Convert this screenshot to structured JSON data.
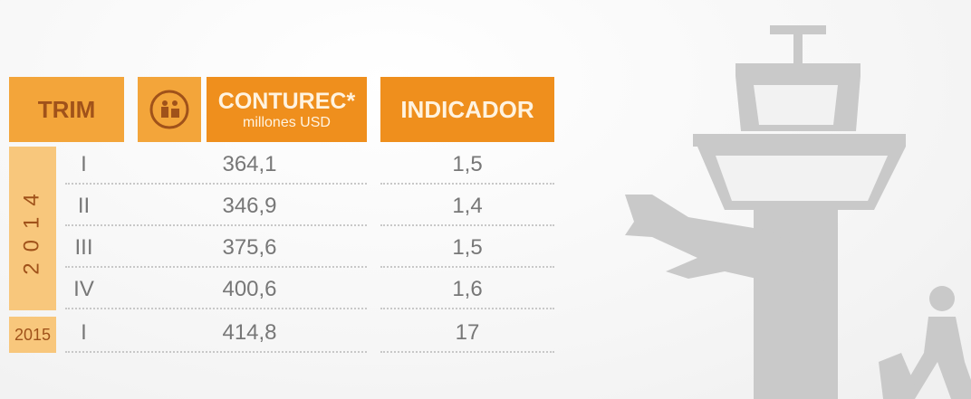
{
  "header": {
    "trim": "TRIM",
    "conturec": "CONTUREC*",
    "unit": "millones USD",
    "indicador": "INDICADOR"
  },
  "years": [
    "2014",
    "2015"
  ],
  "table": {
    "rows": [
      {
        "quarter": "I",
        "value": "364,1",
        "indicator": "1,5"
      },
      {
        "quarter": "II",
        "value": "346,9",
        "indicator": "1,4"
      },
      {
        "quarter": "III",
        "value": "375,6",
        "indicator": "1,5"
      },
      {
        "quarter": "IV",
        "value": "400,6",
        "indicator": "1,6"
      },
      {
        "quarter": "I",
        "value": "414,8",
        "indicator": "17"
      }
    ]
  }
}
